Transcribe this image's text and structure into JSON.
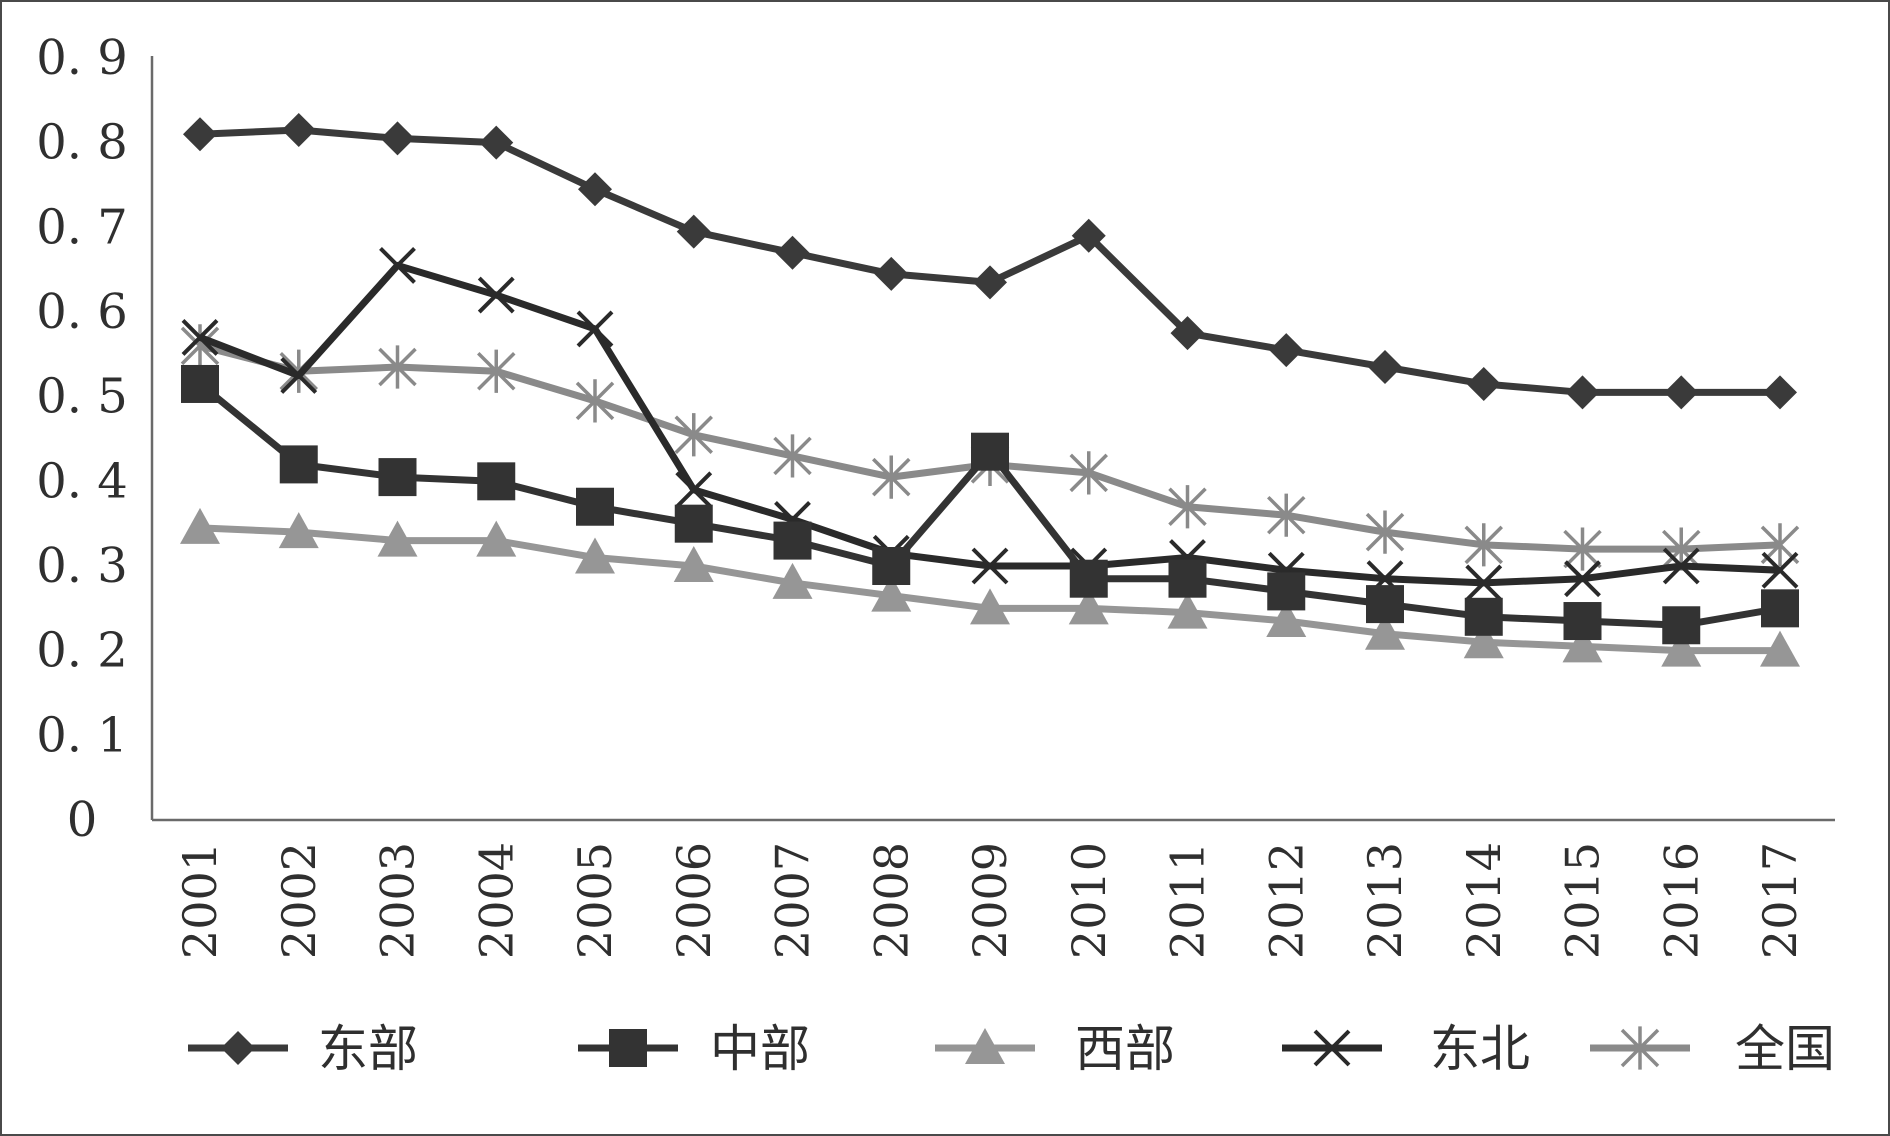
{
  "chart_data": {
    "type": "line",
    "title": "",
    "xlabel": "",
    "ylabel": "",
    "ylim": [
      0,
      0.9
    ],
    "y_ticks": [
      "0",
      "0. 1",
      "0. 2",
      "0. 3",
      "0. 4",
      "0. 5",
      "0. 6",
      "0. 7",
      "0. 8",
      "0. 9"
    ],
    "categories": [
      "2001",
      "2002",
      "2003",
      "2004",
      "2005",
      "2006",
      "2007",
      "2008",
      "2009",
      "2010",
      "2011",
      "2012",
      "2013",
      "2014",
      "2015",
      "2016",
      "2017"
    ],
    "grid": false,
    "legend_position": "bottom",
    "series": [
      {
        "name": "东部",
        "marker": "diamond",
        "color": "#3a3a3a",
        "values": [
          0.81,
          0.815,
          0.805,
          0.8,
          0.745,
          0.695,
          0.67,
          0.645,
          0.635,
          0.69,
          0.575,
          0.555,
          0.535,
          0.515,
          0.505,
          0.505,
          0.505
        ]
      },
      {
        "name": "中部",
        "marker": "square",
        "color": "#333333",
        "values": [
          0.515,
          0.42,
          0.405,
          0.4,
          0.37,
          0.35,
          0.33,
          0.3,
          0.435,
          0.285,
          0.285,
          0.27,
          0.255,
          0.24,
          0.235,
          0.23,
          0.25
        ]
      },
      {
        "name": "西部",
        "marker": "triangle",
        "color": "#969696",
        "values": [
          0.345,
          0.34,
          0.33,
          0.33,
          0.31,
          0.3,
          0.28,
          0.265,
          0.25,
          0.25,
          0.245,
          0.235,
          0.22,
          0.21,
          0.205,
          0.2,
          0.2
        ]
      },
      {
        "name": "东北",
        "marker": "x",
        "color": "#2a2a2a",
        "values": [
          0.57,
          0.525,
          0.655,
          0.62,
          0.58,
          0.39,
          0.355,
          0.315,
          0.3,
          0.3,
          0.31,
          0.295,
          0.285,
          0.28,
          0.285,
          0.3,
          0.295
        ]
      },
      {
        "name": "全国",
        "marker": "asterisk",
        "color": "#8a8a8a",
        "values": [
          0.56,
          0.53,
          0.535,
          0.53,
          0.495,
          0.455,
          0.43,
          0.405,
          0.42,
          0.41,
          0.37,
          0.36,
          0.34,
          0.325,
          0.32,
          0.32,
          0.325
        ]
      }
    ]
  }
}
